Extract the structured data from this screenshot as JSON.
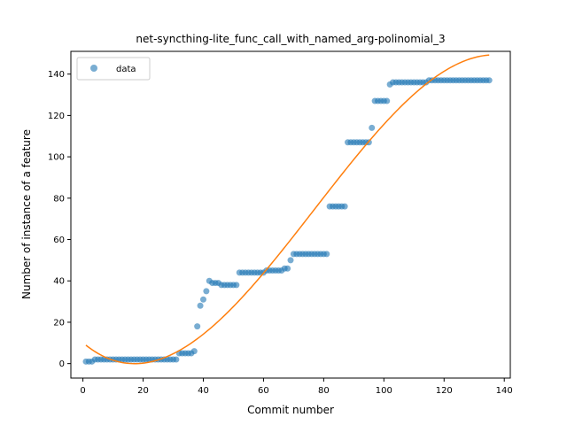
{
  "chart_data": {
    "type": "scatter",
    "title": "net-syncthing-lite_func_call_with_named_arg-polinomial_3",
    "xlabel": "Commit number",
    "ylabel": "Number of instance of a feature",
    "xlim": [
      -4,
      142
    ],
    "ylim": [
      -7,
      151
    ],
    "xticks": [
      0,
      20,
      40,
      60,
      80,
      100,
      120,
      140
    ],
    "yticks": [
      0,
      20,
      40,
      60,
      80,
      100,
      120,
      140
    ],
    "grid": false,
    "legend": {
      "placement": "top-left",
      "entries": [
        "data"
      ]
    },
    "colors": {
      "data": "#1f77b4",
      "fit": "#ff7f0e"
    },
    "series": [
      {
        "name": "data",
        "marker": "circle",
        "x": [
          1,
          2,
          3,
          4,
          5,
          6,
          7,
          8,
          9,
          10,
          11,
          12,
          13,
          14,
          15,
          16,
          17,
          18,
          19,
          20,
          21,
          22,
          23,
          24,
          25,
          26,
          27,
          28,
          29,
          30,
          31,
          32,
          33,
          34,
          35,
          36,
          37,
          38,
          39,
          40,
          41,
          42,
          43,
          44,
          45,
          46,
          47,
          48,
          49,
          50,
          51,
          52,
          53,
          54,
          55,
          56,
          57,
          58,
          59,
          60,
          61,
          62,
          63,
          64,
          65,
          66,
          67,
          68,
          69,
          70,
          71,
          72,
          73,
          74,
          75,
          76,
          77,
          78,
          79,
          80,
          81,
          82,
          83,
          84,
          85,
          86,
          87,
          88,
          89,
          90,
          91,
          92,
          93,
          94,
          95,
          96,
          97,
          98,
          99,
          100,
          101,
          102,
          103,
          104,
          105,
          106,
          107,
          108,
          109,
          110,
          111,
          112,
          113,
          114,
          115,
          116,
          117,
          118,
          119,
          120,
          121,
          122,
          123,
          124,
          125,
          126,
          127,
          128,
          129,
          130,
          131,
          132,
          133,
          134,
          135
        ],
        "y": [
          1,
          1,
          1,
          2,
          2,
          2,
          2,
          2,
          2,
          2,
          2,
          2,
          2,
          2,
          2,
          2,
          2,
          2,
          2,
          2,
          2,
          2,
          2,
          2,
          2,
          2,
          2,
          2,
          2,
          2,
          2,
          5,
          5,
          5,
          5,
          5,
          6,
          18,
          28,
          31,
          35,
          40,
          39,
          39,
          39,
          38,
          38,
          38,
          38,
          38,
          38,
          44,
          44,
          44,
          44,
          44,
          44,
          44,
          44,
          44,
          45,
          45,
          45,
          45,
          45,
          45,
          46,
          46,
          50,
          53,
          53,
          53,
          53,
          53,
          53,
          53,
          53,
          53,
          53,
          53,
          53,
          76,
          76,
          76,
          76,
          76,
          76,
          107,
          107,
          107,
          107,
          107,
          107,
          107,
          107,
          114,
          127,
          127,
          127,
          127,
          127,
          135,
          136,
          136,
          136,
          136,
          136,
          136,
          136,
          136,
          136,
          136,
          136,
          136,
          137,
          137,
          137,
          137,
          137,
          137,
          137,
          137,
          137,
          137,
          137,
          137,
          137,
          137,
          137,
          137,
          137,
          137,
          137,
          137,
          137
        ]
      },
      {
        "name": "",
        "type": "line",
        "fit": "polynomial degree 3",
        "coefficients": [
          10.1,
          -1.231,
          0.04035,
          -0.0001748
        ]
      }
    ]
  }
}
